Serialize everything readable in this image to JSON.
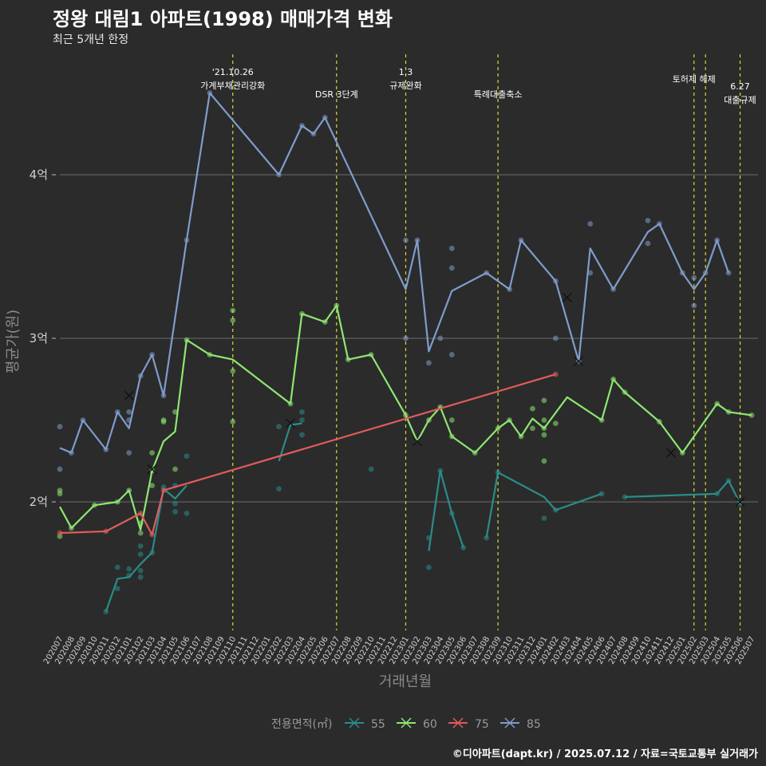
{
  "page": {
    "title": "정왕 대림1 아파트(1998) 매매가격 변화",
    "subtitle": "최근 5개년 한정",
    "caption": "©디아파트(dapt.kr) / 2025.07.12 / 자료=국토교통부 실거래가"
  },
  "chart_data": {
    "type": "line",
    "xlabel": "거래년월",
    "ylabel": "평균가(원)",
    "x_categories": [
      "202007",
      "202008",
      "202009",
      "202010",
      "202011",
      "202012",
      "202101",
      "202102",
      "202103",
      "202104",
      "202105",
      "202106",
      "202107",
      "202108",
      "202109",
      "202110",
      "202111",
      "202112",
      "202201",
      "202202",
      "202203",
      "202204",
      "202205",
      "202206",
      "202207",
      "202208",
      "202209",
      "202210",
      "202211",
      "202212",
      "202301",
      "202302",
      "202303",
      "202304",
      "202305",
      "202306",
      "202307",
      "202308",
      "202309",
      "202310",
      "202311",
      "202312",
      "202401",
      "202402",
      "202403",
      "202404",
      "202405",
      "202406",
      "202407",
      "202408",
      "202409",
      "202410",
      "202411",
      "202412",
      "202501",
      "202502",
      "202503",
      "202504",
      "202505",
      "202506",
      "202507"
    ],
    "ylim_eok": [
      1.2,
      5.0
    ],
    "y_ticks": [
      {
        "value": 2,
        "label": "2억"
      },
      {
        "value": 3,
        "label": "3억"
      },
      {
        "value": 4,
        "label": "4억"
      }
    ],
    "grid": true,
    "legend_title": "전용면적(㎡)",
    "legend_position": "bottom",
    "events": [
      {
        "x": 202110,
        "lines": [
          "'21.10.26",
          "가계부채관리강화"
        ]
      },
      {
        "x": 202207,
        "lines": [
          "DSR 3단계"
        ]
      },
      {
        "x": 202301,
        "lines": [
          "1.3",
          "규제완화"
        ]
      },
      {
        "x": 202309,
        "lines": [
          "특례대출축소"
        ]
      },
      {
        "x": 202502,
        "lines": [
          "토허제 해제"
        ]
      },
      {
        "x": 202503,
        "lines": []
      },
      {
        "x": 202506,
        "lines": [
          "6.27",
          "대출규제"
        ]
      }
    ],
    "series": [
      {
        "name": "55",
        "color": "#2a8c8a",
        "line": [
          [
            202011,
            1.33
          ],
          [
            202012,
            1.53
          ],
          [
            202101,
            1.54
          ],
          [
            202102,
            1.62
          ],
          [
            202103,
            1.69
          ],
          [
            202104,
            2.08
          ],
          [
            202105,
            2.02
          ],
          [
            202106,
            2.1
          ],
          [
            null,
            null
          ],
          [
            202202,
            2.25
          ],
          [
            202203,
            2.47
          ],
          [
            202204,
            2.48
          ],
          [
            null,
            null
          ],
          [
            202303,
            1.7
          ],
          [
            202304,
            2.19
          ],
          [
            202305,
            1.93
          ],
          [
            202306,
            1.72
          ],
          [
            null,
            null
          ],
          [
            202308,
            1.78
          ],
          [
            202309,
            2.18
          ],
          [
            202401,
            2.03
          ],
          [
            202402,
            1.95
          ],
          [
            202406,
            2.05
          ],
          [
            null,
            null
          ],
          [
            202408,
            2.03
          ],
          [
            202504,
            2.05
          ],
          [
            202505,
            2.13
          ],
          [
            202506,
            1.99
          ]
        ],
        "points": [
          [
            202011,
            1.33
          ],
          [
            202012,
            1.47
          ],
          [
            202012,
            1.6
          ],
          [
            202101,
            1.59
          ],
          [
            202101,
            1.55
          ],
          [
            202102,
            1.73
          ],
          [
            202102,
            1.68
          ],
          [
            202102,
            1.58
          ],
          [
            202102,
            1.54
          ],
          [
            202103,
            1.69
          ],
          [
            202104,
            2.09
          ],
          [
            202105,
            2.1
          ],
          [
            202105,
            1.99
          ],
          [
            202105,
            1.94
          ],
          [
            202106,
            2.28
          ],
          [
            202106,
            1.93
          ],
          [
            202202,
            2.08
          ],
          [
            202202,
            2.46
          ],
          [
            202204,
            2.5
          ],
          [
            202204,
            2.41
          ],
          [
            202204,
            2.55
          ],
          [
            202210,
            2.2
          ],
          [
            202303,
            1.6
          ],
          [
            202303,
            1.78
          ],
          [
            202304,
            2.19
          ],
          [
            202305,
            1.93
          ],
          [
            202306,
            1.72
          ],
          [
            202308,
            1.78
          ],
          [
            202309,
            2.18
          ],
          [
            202401,
            1.9
          ],
          [
            202402,
            1.95
          ],
          [
            202406,
            2.05
          ],
          [
            202408,
            2.03
          ],
          [
            202504,
            2.05
          ],
          [
            202505,
            2.13
          ],
          [
            202506,
            1.99
          ]
        ],
        "cancelled": [
          [
            202203,
            2.48
          ],
          [
            202506,
            2.0
          ]
        ]
      },
      {
        "name": "60",
        "color": "#8ee672",
        "line": [
          [
            202007,
            1.97
          ],
          [
            202008,
            1.84
          ],
          [
            202010,
            1.98
          ],
          [
            202012,
            2.0
          ],
          [
            202101,
            2.07
          ],
          [
            202102,
            1.83
          ],
          [
            202103,
            2.19
          ],
          [
            202104,
            2.37
          ],
          [
            202105,
            2.43
          ],
          [
            202106,
            2.99
          ],
          [
            202108,
            2.9
          ],
          [
            202110,
            2.87
          ],
          [
            202203,
            2.6
          ],
          [
            202204,
            3.15
          ],
          [
            202206,
            3.1
          ],
          [
            202207,
            3.2
          ],
          [
            202208,
            2.87
          ],
          [
            202210,
            2.9
          ],
          [
            202301,
            2.53
          ],
          [
            202302,
            2.37
          ],
          [
            202303,
            2.5
          ],
          [
            202304,
            2.58
          ],
          [
            202305,
            2.4
          ],
          [
            202307,
            2.3
          ],
          [
            202309,
            2.45
          ],
          [
            202310,
            2.5
          ],
          [
            202311,
            2.4
          ],
          [
            202312,
            2.51
          ],
          [
            202401,
            2.45
          ],
          [
            202403,
            2.64
          ],
          [
            202406,
            2.5
          ],
          [
            202407,
            2.75
          ],
          [
            202408,
            2.67
          ],
          [
            202411,
            2.49
          ],
          [
            202501,
            2.3
          ],
          [
            202504,
            2.6
          ],
          [
            202505,
            2.55
          ],
          [
            202507,
            2.53
          ]
        ],
        "points": [
          [
            202007,
            2.07
          ],
          [
            202007,
            2.05
          ],
          [
            202007,
            1.79
          ],
          [
            202008,
            1.84
          ],
          [
            202010,
            1.98
          ],
          [
            202012,
            2.0
          ],
          [
            202101,
            2.07
          ],
          [
            202102,
            1.81
          ],
          [
            202102,
            1.87
          ],
          [
            202103,
            2.19
          ],
          [
            202103,
            2.3
          ],
          [
            202103,
            2.1
          ],
          [
            202104,
            2.49
          ],
          [
            202104,
            2.5
          ],
          [
            202105,
            2.55
          ],
          [
            202105,
            2.2
          ],
          [
            202106,
            2.99
          ],
          [
            202108,
            2.9
          ],
          [
            202110,
            3.17
          ],
          [
            202110,
            3.11
          ],
          [
            202110,
            2.8
          ],
          [
            202110,
            2.49
          ],
          [
            202203,
            2.6
          ],
          [
            202204,
            3.15
          ],
          [
            202206,
            3.1
          ],
          [
            202207,
            3.2
          ],
          [
            202208,
            2.87
          ],
          [
            202210,
            2.9
          ],
          [
            202301,
            2.53
          ],
          [
            202303,
            2.5
          ],
          [
            202304,
            2.58
          ],
          [
            202305,
            2.5
          ],
          [
            202305,
            2.4
          ],
          [
            202307,
            2.3
          ],
          [
            202309,
            2.45
          ],
          [
            202310,
            2.5
          ],
          [
            202311,
            2.4
          ],
          [
            202312,
            2.57
          ],
          [
            202312,
            2.45
          ],
          [
            202401,
            2.45
          ],
          [
            202401,
            2.62
          ],
          [
            202401,
            2.25
          ],
          [
            202401,
            2.41
          ],
          [
            202401,
            2.5
          ],
          [
            202402,
            2.48
          ],
          [
            202406,
            2.5
          ],
          [
            202407,
            2.75
          ],
          [
            202408,
            2.67
          ],
          [
            202411,
            2.49
          ],
          [
            202501,
            2.3
          ],
          [
            202504,
            2.6
          ],
          [
            202505,
            2.55
          ],
          [
            202507,
            2.53
          ]
        ],
        "cancelled": [
          [
            202103,
            2.2
          ],
          [
            202302,
            2.37
          ],
          [
            202412,
            2.3
          ]
        ]
      },
      {
        "name": "75",
        "color": "#e05c5c",
        "line": [
          [
            202007,
            1.81
          ],
          [
            202011,
            1.82
          ],
          [
            202102,
            1.93
          ],
          [
            202103,
            1.8
          ],
          [
            202104,
            2.07
          ],
          [
            202402,
            2.78
          ]
        ],
        "points": [
          [
            202007,
            1.81
          ],
          [
            202011,
            1.82
          ],
          [
            202102,
            1.93
          ],
          [
            202103,
            1.8
          ],
          [
            202104,
            2.07
          ],
          [
            202402,
            2.78
          ]
        ],
        "cancelled": []
      },
      {
        "name": "85",
        "color": "#7f9ccc",
        "line": [
          [
            202007,
            2.33
          ],
          [
            202008,
            2.3
          ],
          [
            202009,
            2.5
          ],
          [
            202011,
            2.32
          ],
          [
            202012,
            2.55
          ],
          [
            202101,
            2.45
          ],
          [
            202102,
            2.77
          ],
          [
            202103,
            2.9
          ],
          [
            202104,
            2.65
          ],
          [
            202106,
            3.6
          ],
          [
            202108,
            4.5
          ],
          [
            202202,
            4.0
          ],
          [
            202204,
            4.3
          ],
          [
            202205,
            4.25
          ],
          [
            202206,
            4.35
          ],
          [
            202301,
            3.3
          ],
          [
            202302,
            3.6
          ],
          [
            202303,
            2.92
          ],
          [
            202305,
            3.29
          ],
          [
            202308,
            3.4
          ],
          [
            202310,
            3.3
          ],
          [
            202311,
            3.6
          ],
          [
            202402,
            3.35
          ],
          [
            202404,
            2.86
          ],
          [
            202405,
            3.55
          ],
          [
            202407,
            3.3
          ],
          [
            202410,
            3.65
          ],
          [
            202411,
            3.7
          ],
          [
            202501,
            3.4
          ],
          [
            202502,
            3.3
          ],
          [
            202503,
            3.4
          ],
          [
            202504,
            3.6
          ],
          [
            202505,
            3.4
          ]
        ],
        "points": [
          [
            202007,
            2.46
          ],
          [
            202007,
            2.2
          ],
          [
            202008,
            2.3
          ],
          [
            202009,
            2.5
          ],
          [
            202011,
            2.32
          ],
          [
            202012,
            2.55
          ],
          [
            202101,
            2.55
          ],
          [
            202101,
            2.5
          ],
          [
            202101,
            2.3
          ],
          [
            202102,
            2.77
          ],
          [
            202103,
            2.9
          ],
          [
            202104,
            2.65
          ],
          [
            202106,
            3.6
          ],
          [
            202108,
            4.5
          ],
          [
            202202,
            4.0
          ],
          [
            202204,
            4.3
          ],
          [
            202205,
            4.25
          ],
          [
            202206,
            4.35
          ],
          [
            202301,
            3.6
          ],
          [
            202301,
            3.0
          ],
          [
            202302,
            3.6
          ],
          [
            202303,
            2.85
          ],
          [
            202304,
            3.0
          ],
          [
            202305,
            3.55
          ],
          [
            202305,
            3.43
          ],
          [
            202305,
            2.9
          ],
          [
            202308,
            3.4
          ],
          [
            202310,
            3.3
          ],
          [
            202311,
            3.6
          ],
          [
            202402,
            3.35
          ],
          [
            202402,
            3.0
          ],
          [
            202404,
            2.86
          ],
          [
            202405,
            3.7
          ],
          [
            202405,
            3.4
          ],
          [
            202407,
            3.3
          ],
          [
            202410,
            3.72
          ],
          [
            202410,
            3.58
          ],
          [
            202411,
            3.7
          ],
          [
            202501,
            3.4
          ],
          [
            202502,
            3.37
          ],
          [
            202502,
            3.2
          ],
          [
            202503,
            3.4
          ],
          [
            202504,
            3.6
          ],
          [
            202505,
            3.4
          ]
        ],
        "cancelled": [
          [
            202101,
            2.65
          ],
          [
            202403,
            3.25
          ],
          [
            202404,
            2.86
          ]
        ]
      }
    ]
  }
}
